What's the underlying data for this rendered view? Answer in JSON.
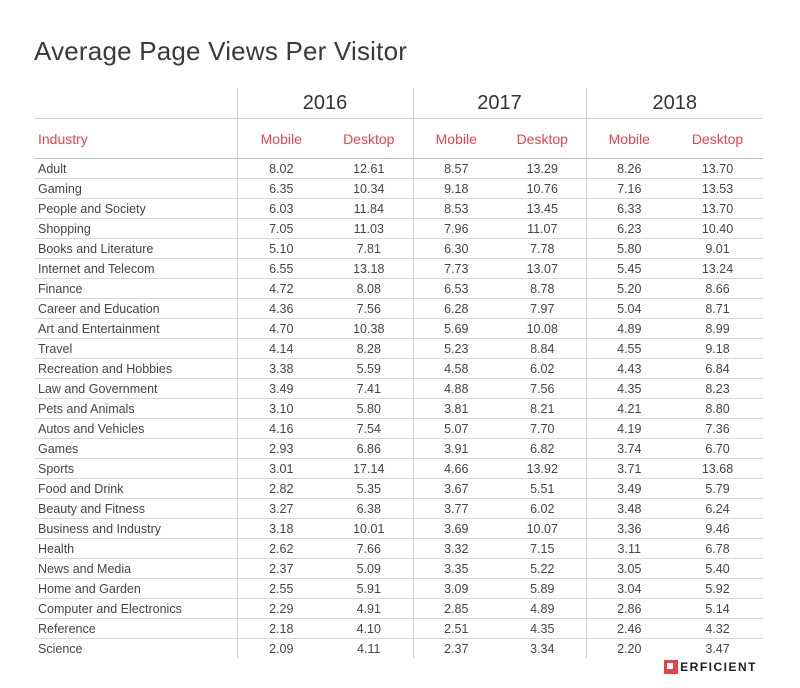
{
  "title": "Average Page Views Per Visitor",
  "logo_text": "ERFICIENT",
  "chart_data": {
    "type": "table",
    "title": "Average Page Views Per Visitor",
    "header_label": "Industry",
    "years": [
      "2016",
      "2017",
      "2018"
    ],
    "columns": [
      "Mobile",
      "Desktop",
      "Mobile",
      "Desktop",
      "Mobile",
      "Desktop"
    ],
    "rows": [
      {
        "industry": "Adult",
        "values": [
          "8.02",
          "12.61",
          "8.57",
          "13.29",
          "8.26",
          "13.70"
        ]
      },
      {
        "industry": "Gaming",
        "values": [
          "6.35",
          "10.34",
          "9.18",
          "10.76",
          "7.16",
          "13.53"
        ]
      },
      {
        "industry": "People and Society",
        "values": [
          "6.03",
          "11.84",
          "8.53",
          "13.45",
          "6.33",
          "13.70"
        ]
      },
      {
        "industry": "Shopping",
        "values": [
          "7.05",
          "11.03",
          "7.96",
          "11.07",
          "6.23",
          "10.40"
        ]
      },
      {
        "industry": "Books and Literature",
        "values": [
          "5.10",
          "7.81",
          "6.30",
          "7.78",
          "5.80",
          "9.01"
        ]
      },
      {
        "industry": "Internet and Telecom",
        "values": [
          "6.55",
          "13.18",
          "7.73",
          "13.07",
          "5.45",
          "13.24"
        ]
      },
      {
        "industry": "Finance",
        "values": [
          "4.72",
          "8.08",
          "6.53",
          "8.78",
          "5.20",
          "8.66"
        ]
      },
      {
        "industry": "Career and Education",
        "values": [
          "4.36",
          "7.56",
          "6.28",
          "7.97",
          "5.04",
          "8.71"
        ]
      },
      {
        "industry": "Art and Entertainment",
        "values": [
          "4.70",
          "10.38",
          "5.69",
          "10.08",
          "4.89",
          "8.99"
        ]
      },
      {
        "industry": "Travel",
        "values": [
          "4.14",
          "8.28",
          "5.23",
          "8.84",
          "4.55",
          "9.18"
        ]
      },
      {
        "industry": "Recreation and Hobbies",
        "values": [
          "3.38",
          "5.59",
          "4.58",
          "6.02",
          "4.43",
          "6.84"
        ]
      },
      {
        "industry": "Law and Government",
        "values": [
          "3.49",
          "7.41",
          "4.88",
          "7.56",
          "4.35",
          "8.23"
        ]
      },
      {
        "industry": "Pets and Animals",
        "values": [
          "3.10",
          "5.80",
          "3.81",
          "8.21",
          "4.21",
          "8.80"
        ]
      },
      {
        "industry": "Autos and Vehicles",
        "values": [
          "4.16",
          "7.54",
          "5.07",
          "7.70",
          "4.19",
          "7.36"
        ]
      },
      {
        "industry": "Games",
        "values": [
          "2.93",
          "6.86",
          "3.91",
          "6.82",
          "3.74",
          "6.70"
        ]
      },
      {
        "industry": "Sports",
        "values": [
          "3.01",
          "17.14",
          "4.66",
          "13.92",
          "3.71",
          "13.68"
        ]
      },
      {
        "industry": "Food and Drink",
        "values": [
          "2.82",
          "5.35",
          "3.67",
          "5.51",
          "3.49",
          "5.79"
        ]
      },
      {
        "industry": "Beauty and Fitness",
        "values": [
          "3.27",
          "6.38",
          "3.77",
          "6.02",
          "3.48",
          "6.24"
        ]
      },
      {
        "industry": "Business and Industry",
        "values": [
          "3.18",
          "10.01",
          "3.69",
          "10.07",
          "3.36",
          "9.46"
        ]
      },
      {
        "industry": "Health",
        "values": [
          "2.62",
          "7.66",
          "3.32",
          "7.15",
          "3.11",
          "6.78"
        ]
      },
      {
        "industry": "News and Media",
        "values": [
          "2.37",
          "5.09",
          "3.35",
          "5.22",
          "3.05",
          "5.40"
        ]
      },
      {
        "industry": "Home and Garden",
        "values": [
          "2.55",
          "5.91",
          "3.09",
          "5.89",
          "3.04",
          "5.92"
        ]
      },
      {
        "industry": "Computer and Electronics",
        "values": [
          "2.29",
          "4.91",
          "2.85",
          "4.89",
          "2.86",
          "5.14"
        ]
      },
      {
        "industry": "Reference",
        "values": [
          "2.18",
          "4.10",
          "2.51",
          "4.35",
          "2.46",
          "4.32"
        ]
      },
      {
        "industry": "Science",
        "values": [
          "2.09",
          "4.11",
          "2.37",
          "3.34",
          "2.20",
          "3.47"
        ]
      }
    ]
  },
  "colors": {
    "header_accent": "#e8434b",
    "text": "#444444",
    "rule": "#d9d9d9",
    "logo_mark": "#e8434b"
  }
}
